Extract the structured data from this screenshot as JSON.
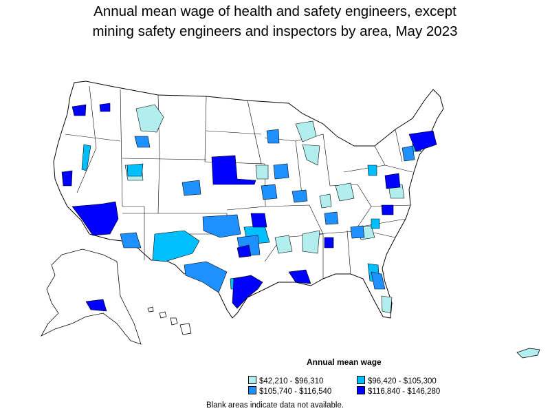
{
  "title_line1": "Annual mean wage of health and safety engineers, except",
  "title_line2": "mining safety engineers and inspectors by area, May 2023",
  "legend": {
    "title": "Annual mean wage",
    "items": [
      {
        "label": "$42,210 - $96,310",
        "color": "#b2eeee"
      },
      {
        "label": "$96,420 - $105,300",
        "color": "#00bfff"
      },
      {
        "label": "$105,740 - $116,540",
        "color": "#1e90ff"
      },
      {
        "label": "$116,840 - $146,280",
        "color": "#0000ff"
      }
    ]
  },
  "note": "Blank areas indicate data not available.",
  "colors": {
    "tier1": "#b2eeee",
    "tier2": "#00bfff",
    "tier3": "#1e90ff",
    "tier4": "#0000ff",
    "blank": "#ffffff",
    "border": "#000000"
  }
}
